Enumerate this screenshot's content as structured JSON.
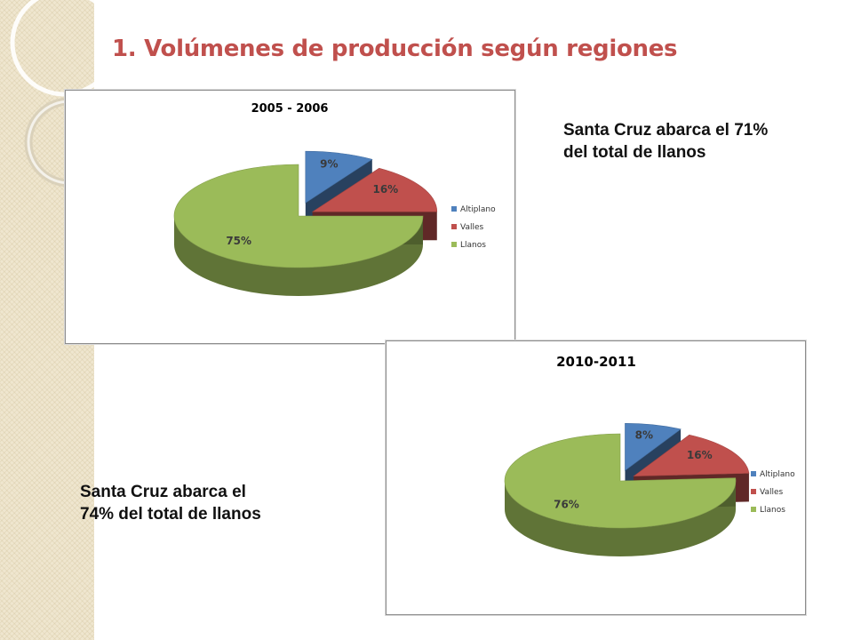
{
  "slide": {
    "title": "1. Volúmenes de producción según regiones",
    "note_top_line1": "Santa Cruz abarca el 71%",
    "note_top_line2": "del total de llanos",
    "note_bottom_line1": "Santa Cruz abarca el",
    "note_bottom_line2": "74% del total de llanos"
  },
  "colors": {
    "Altiplano": "#4f81bd",
    "Valles": "#c0504d",
    "Llanos": "#9bbb59",
    "title": "#c0504d"
  },
  "chart_data": [
    {
      "type": "pie",
      "style": "3d-exploded",
      "title": "2005 - 2006",
      "categories": [
        "Altiplano",
        "Valles",
        "Llanos"
      ],
      "values": [
        9,
        16,
        75
      ],
      "data_labels": [
        "9%",
        "16%",
        "75%"
      ],
      "legend": "right"
    },
    {
      "type": "pie",
      "style": "3d-exploded",
      "title": "2010-2011",
      "categories": [
        "Altiplano",
        "Valles",
        "Llanos"
      ],
      "values": [
        8,
        16,
        76
      ],
      "data_labels": [
        "8%",
        "16%",
        "76%"
      ],
      "legend": "right"
    }
  ]
}
